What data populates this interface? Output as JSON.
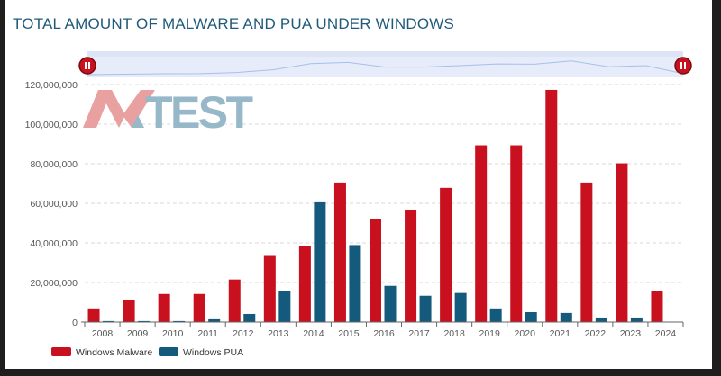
{
  "title": "TOTAL AMOUNT OF MALWARE AND PUA UNDER WINDOWS",
  "logo_text": "AV-TEST",
  "navigator": {
    "left_handle_icon": "pause-handle-icon",
    "right_handle_icon": "pause-handle-icon"
  },
  "chart_data": {
    "type": "bar",
    "title": "TOTAL AMOUNT OF MALWARE AND PUA UNDER WINDOWS",
    "categories": [
      "2008",
      "2009",
      "2010",
      "2011",
      "2012",
      "2013",
      "2014",
      "2015",
      "2016",
      "2017",
      "2018",
      "2019",
      "2020",
      "2021",
      "2022",
      "2023",
      "2024"
    ],
    "series": [
      {
        "name": "Windows Malware",
        "color": "#c8101e",
        "values": [
          6900000,
          11000000,
          14200000,
          14200000,
          21500000,
          33400000,
          38500000,
          70500000,
          52200000,
          56800000,
          67800000,
          89300000,
          89300000,
          117300000,
          70500000,
          80200000,
          15600000
        ]
      },
      {
        "name": "Windows PUA",
        "color": "#135a7d",
        "values": [
          500000,
          500000,
          500000,
          1400000,
          4100000,
          15600000,
          60500000,
          38900000,
          18300000,
          13300000,
          14700000,
          6900000,
          5000000,
          4600000,
          2300000,
          2300000,
          200000
        ]
      }
    ],
    "ylim": [
      0,
      120000000
    ],
    "yticks": [
      "0",
      "20,000,000",
      "40,000,000",
      "60,000,000",
      "80,000,000",
      "100,000,000",
      "120,000,000"
    ],
    "grid": true,
    "legend": "bottom-left"
  }
}
